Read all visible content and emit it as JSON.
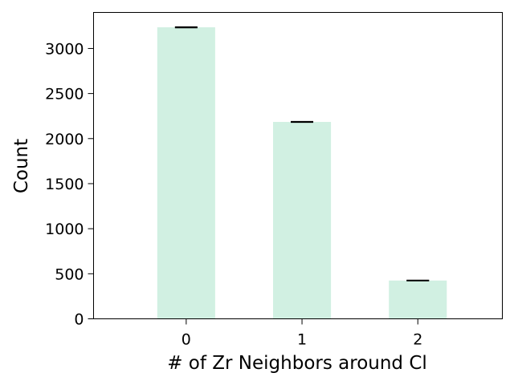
{
  "chart_data": {
    "type": "bar",
    "categories": [
      "0",
      "1",
      "2"
    ],
    "values": [
      3235,
      2185,
      425
    ],
    "error_bars": [
      4,
      3,
      2
    ],
    "xlabel": "# of Zr Neighbors around Cl",
    "ylabel": "Count",
    "ylim": [
      0,
      3400
    ],
    "yticks": [
      0,
      500,
      1000,
      1500,
      2000,
      2500,
      3000
    ],
    "grid": false,
    "bar_color": "#d1f0e2",
    "errorbar_color": "#000000"
  }
}
